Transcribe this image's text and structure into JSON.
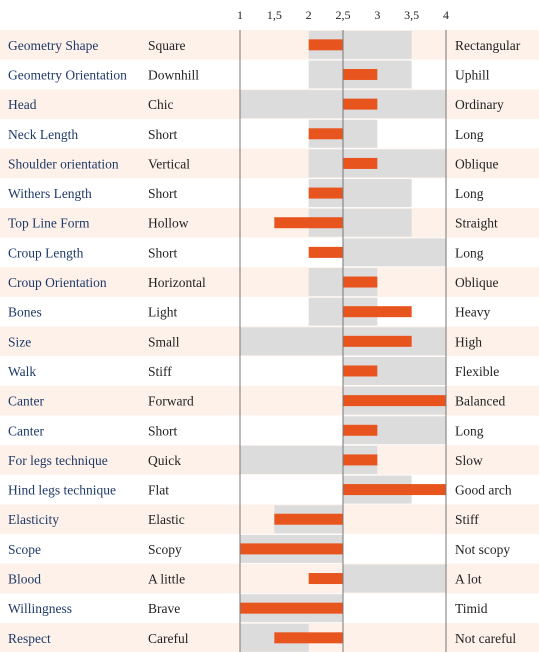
{
  "chart_data": {
    "type": "bar",
    "title": "",
    "xlabel": "",
    "ylabel": "",
    "xlim": [
      1,
      4
    ],
    "center": 2.5,
    "ticks": [
      "1",
      "1,5",
      "2",
      "2,5",
      "3",
      "3,5",
      "4"
    ],
    "tick_values": [
      1,
      1.5,
      2,
      2.5,
      3,
      3.5,
      4
    ],
    "colors": {
      "bar": "#e8541e",
      "range": "#dcdcdc",
      "row_alt": "#fdf1ea",
      "trait_text": "#1f3a68",
      "axis_line": "#777777"
    },
    "rows": [
      {
        "trait": "Geometry Shape",
        "low": "Square",
        "high": "Rectangular",
        "value": 2.0,
        "range": [
          2.0,
          3.5
        ]
      },
      {
        "trait": "Geometry Orientation",
        "low": "Downhill",
        "high": "Uphill",
        "value": 3.0,
        "range": [
          2.0,
          3.5
        ]
      },
      {
        "trait": "Head",
        "low": "Chic",
        "high": "Ordinary",
        "value": 3.0,
        "range": [
          1.0,
          4.0
        ]
      },
      {
        "trait": "Neck Length",
        "low": "Short",
        "high": "Long",
        "value": 2.0,
        "range": [
          2.0,
          3.0
        ]
      },
      {
        "trait": "Shoulder orientation",
        "low": "Vertical",
        "high": "Oblique",
        "value": 3.0,
        "range": [
          2.0,
          4.0
        ]
      },
      {
        "trait": "Withers Length",
        "low": "Short",
        "high": "Long",
        "value": 2.0,
        "range": [
          2.0,
          3.5
        ]
      },
      {
        "trait": "Top Line Form",
        "low": "Hollow",
        "high": "Straight",
        "value": 1.5,
        "range": [
          2.0,
          3.5
        ]
      },
      {
        "trait": "Croup Length",
        "low": "Short",
        "high": "Long",
        "value": 2.0,
        "range": [
          2.5,
          4.0
        ]
      },
      {
        "trait": "Croup Orientation",
        "low": "Horizontal",
        "high": "Oblique",
        "value": 3.0,
        "range": [
          2.0,
          3.0
        ]
      },
      {
        "trait": "Bones",
        "low": "Light",
        "high": "Heavy",
        "value": 3.5,
        "range": [
          2.0,
          3.0
        ]
      },
      {
        "trait": "Size",
        "low": "Small",
        "high": "High",
        "value": 3.5,
        "range": [
          1.0,
          4.0
        ]
      },
      {
        "trait": "Walk",
        "low": "Stiff",
        "high": "Flexible",
        "value": 3.0,
        "range": [
          2.5,
          4.0
        ]
      },
      {
        "trait": "Canter",
        "low": "Forward",
        "high": "Balanced",
        "value": 4.0,
        "range": [
          2.5,
          4.0
        ]
      },
      {
        "trait": "Canter",
        "low": "Short",
        "high": "Long",
        "value": 3.0,
        "range": [
          2.5,
          4.0
        ]
      },
      {
        "trait": "For legs technique",
        "low": "Quick",
        "high": "Slow",
        "value": 3.0,
        "range": [
          1.0,
          3.0
        ]
      },
      {
        "trait": "Hind legs technique",
        "low": "Flat",
        "high": "Good arch",
        "value": 4.0,
        "range": [
          2.5,
          3.5
        ]
      },
      {
        "trait": "Elasticity",
        "low": "Elastic",
        "high": "Stiff",
        "value": 1.5,
        "range": [
          1.5,
          2.5
        ]
      },
      {
        "trait": "Scope",
        "low": "Scopy",
        "high": "Not scopy",
        "value": 1.0,
        "range": [
          1.0,
          2.5
        ]
      },
      {
        "trait": "Blood",
        "low": "A little",
        "high": "A lot",
        "value": 2.0,
        "range": [
          2.5,
          4.0
        ]
      },
      {
        "trait": "Willingness",
        "low": "Brave",
        "high": "Timid",
        "value": 1.0,
        "range": [
          1.0,
          2.5
        ]
      },
      {
        "trait": "Respect",
        "low": "Careful",
        "high": "Not careful",
        "value": 1.5,
        "range": [
          1.0,
          2.0
        ]
      }
    ]
  }
}
